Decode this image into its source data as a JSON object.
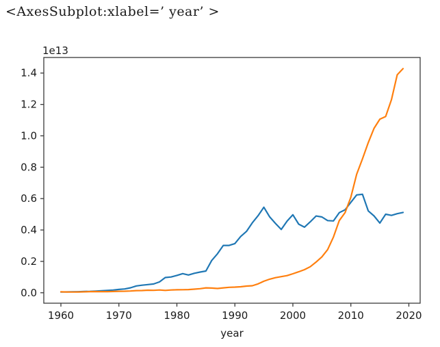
{
  "console": {
    "repr_text": "<AxesSubplot:xlabel=’ year’ >"
  },
  "chart_data": {
    "type": "line",
    "title": "",
    "xlabel": "year",
    "ylabel": "",
    "y_offset_label": "1e13",
    "grid": false,
    "legend": "none",
    "x_ticks": [
      1960,
      1970,
      1980,
      1990,
      2000,
      2010,
      2020
    ],
    "y_tick_labels": [
      "0.0",
      "0.2",
      "0.4",
      "0.6",
      "0.8",
      "1.0",
      "1.2",
      "1.4"
    ],
    "y_tick_values": [
      0.0,
      0.2,
      0.4,
      0.6,
      0.8,
      1.0,
      1.2,
      1.4
    ],
    "xlim": [
      1957.05,
      2021.95
    ],
    "ylim": [
      -0.0665,
      1.4992
    ],
    "x": [
      1960,
      1961,
      1962,
      1963,
      1964,
      1965,
      1966,
      1967,
      1968,
      1969,
      1970,
      1971,
      1972,
      1973,
      1974,
      1975,
      1976,
      1977,
      1978,
      1979,
      1980,
      1981,
      1982,
      1983,
      1984,
      1985,
      1986,
      1987,
      1988,
      1989,
      1990,
      1991,
      1992,
      1993,
      1994,
      1995,
      1996,
      1997,
      1998,
      1999,
      2000,
      2001,
      2002,
      2003,
      2004,
      2005,
      2006,
      2007,
      2008,
      2009,
      2010,
      2011,
      2012,
      2013,
      2014,
      2015,
      2016,
      2017,
      2018,
      2019
    ],
    "series": [
      {
        "name": "blue-line",
        "color": "#1f77b4",
        "values": [
          0.0044,
          0.0054,
          0.0061,
          0.0069,
          0.0082,
          0.0091,
          0.0106,
          0.0124,
          0.0147,
          0.0172,
          0.0213,
          0.024,
          0.0318,
          0.0432,
          0.048,
          0.0521,
          0.0562,
          0.069,
          0.0972,
          0.1007,
          0.1105,
          0.1218,
          0.1134,
          0.1243,
          0.1318,
          0.1385,
          0.2051,
          0.2485,
          0.3015,
          0.3017,
          0.3132,
          0.3584,
          0.3908,
          0.4454,
          0.4907,
          0.5449,
          0.4834,
          0.4415,
          0.4033,
          0.4562,
          0.4968,
          0.4374,
          0.4182,
          0.4519,
          0.4893,
          0.4831,
          0.4601,
          0.4579,
          0.5106,
          0.5289,
          0.5759,
          0.6233,
          0.6272,
          0.5212,
          0.4897,
          0.4444,
          0.5003,
          0.4931,
          0.5041,
          0.5118
        ]
      },
      {
        "name": "orange-line",
        "color": "#ff7f0e",
        "values": [
          0.006,
          0.005,
          0.0047,
          0.0051,
          0.006,
          0.007,
          0.0077,
          0.0072,
          0.0071,
          0.0079,
          0.0093,
          0.0099,
          0.0113,
          0.0139,
          0.0144,
          0.0163,
          0.0154,
          0.0175,
          0.0149,
          0.0178,
          0.0191,
          0.0196,
          0.0205,
          0.0231,
          0.026,
          0.031,
          0.0301,
          0.0273,
          0.0312,
          0.0348,
          0.0361,
          0.0383,
          0.0427,
          0.0445,
          0.0564,
          0.0735,
          0.0864,
          0.0962,
          0.1029,
          0.1094,
          0.1211,
          0.1339,
          0.1471,
          0.166,
          0.1955,
          0.2286,
          0.2752,
          0.3552,
          0.4598,
          0.511,
          0.6087,
          0.7552,
          0.8532,
          0.957,
          1.0476,
          1.1062,
          1.1233,
          1.231,
          1.3895,
          1.428
        ]
      }
    ],
    "style": {
      "spine_color": "#3a3a3a",
      "tick_color": "#3a3a3a",
      "line_width": 2.2,
      "tick_font_size": 15,
      "label_font_size": 15
    }
  }
}
